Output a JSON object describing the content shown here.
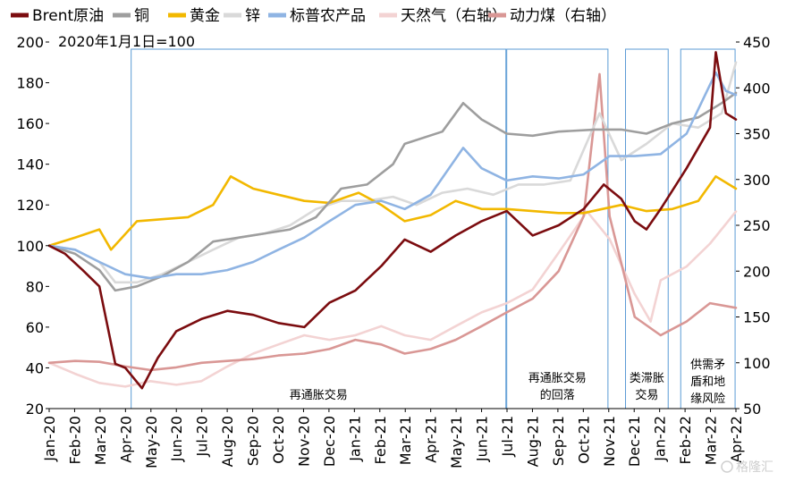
{
  "chart_data": {
    "type": "line",
    "note": "2020年1月1日=100",
    "ylim_left": [
      20,
      200
    ],
    "yticks_left": [
      20,
      40,
      60,
      80,
      100,
      120,
      140,
      160,
      180,
      200
    ],
    "ylim_right": [
      50,
      450
    ],
    "yticks_right": [
      50,
      100,
      150,
      200,
      250,
      300,
      350,
      400,
      450
    ],
    "xlim": [
      "2020-01-01",
      "2022-04-01"
    ],
    "x_ticks": [
      "Jan-20",
      "Feb-20",
      "Mar-20",
      "Apr-20",
      "May-20",
      "Jun-20",
      "Jul-20",
      "Aug-20",
      "Sep-20",
      "Oct-20",
      "Nov-20",
      "Dec-20",
      "Jan-21",
      "Feb-21",
      "Mar-21",
      "Apr-21",
      "May-21",
      "Jun-21",
      "Jul-21",
      "Aug-21",
      "Sep-21",
      "Oct-21",
      "Nov-21",
      "Dec-21",
      "Jan-22",
      "Feb-22",
      "Mar-22",
      "Apr-22"
    ],
    "legend_position": "top",
    "series": [
      {
        "name": "Brent原油",
        "color": "#7b0c0f",
        "axis": "left",
        "x": [
          "2020-01-01",
          "2020-01-20",
          "2020-02-10",
          "2020-03-01",
          "2020-03-20",
          "2020-04-01",
          "2020-04-21",
          "2020-05-10",
          "2020-06-01",
          "2020-07-01",
          "2020-08-01",
          "2020-09-01",
          "2020-10-01",
          "2020-11-01",
          "2020-12-01",
          "2021-01-01",
          "2021-02-01",
          "2021-03-01",
          "2021-04-01",
          "2021-05-01",
          "2021-06-01",
          "2021-07-01",
          "2021-08-01",
          "2021-09-01",
          "2021-10-01",
          "2021-10-25",
          "2021-11-15",
          "2021-12-01",
          "2021-12-15",
          "2022-01-01",
          "2022-02-01",
          "2022-03-01",
          "2022-03-08",
          "2022-03-20",
          "2022-04-01"
        ],
        "y": [
          100,
          96,
          88,
          80,
          42,
          40,
          30,
          45,
          58,
          64,
          68,
          66,
          62,
          60,
          72,
          78,
          90,
          103,
          97,
          105,
          112,
          117,
          105,
          110,
          118,
          130,
          123,
          112,
          108,
          118,
          138,
          158,
          195,
          165,
          162
        ]
      },
      {
        "name": "铜",
        "color": "#9e9e9e",
        "axis": "left",
        "x": [
          "2020-01-01",
          "2020-02-01",
          "2020-03-01",
          "2020-03-20",
          "2020-04-15",
          "2020-05-15",
          "2020-06-15",
          "2020-07-15",
          "2020-08-15",
          "2020-09-15",
          "2020-10-15",
          "2020-11-15",
          "2020-12-15",
          "2021-01-15",
          "2021-02-15",
          "2021-03-01",
          "2021-04-15",
          "2021-05-10",
          "2021-06-01",
          "2021-07-01",
          "2021-08-01",
          "2021-09-01",
          "2021-10-15",
          "2021-11-15",
          "2021-12-15",
          "2022-01-15",
          "2022-02-15",
          "2022-03-15",
          "2022-04-01"
        ],
        "y": [
          100,
          96,
          88,
          78,
          80,
          85,
          92,
          102,
          104,
          106,
          108,
          114,
          128,
          130,
          140,
          150,
          156,
          170,
          162,
          155,
          154,
          156,
          157,
          157,
          155,
          160,
          163,
          170,
          175
        ]
      },
      {
        "name": "黄金",
        "color": "#f2b800",
        "axis": "left",
        "x": [
          "2020-01-01",
          "2020-02-01",
          "2020-03-01",
          "2020-03-15",
          "2020-04-15",
          "2020-05-15",
          "2020-06-15",
          "2020-07-15",
          "2020-08-05",
          "2020-09-01",
          "2020-10-01",
          "2020-11-01",
          "2020-12-01",
          "2021-01-05",
          "2021-02-01",
          "2021-03-01",
          "2021-04-01",
          "2021-05-01",
          "2021-06-01",
          "2021-07-01",
          "2021-08-01",
          "2021-09-01",
          "2021-10-01",
          "2021-11-15",
          "2021-12-15",
          "2022-01-15",
          "2022-02-15",
          "2022-03-08",
          "2022-04-01"
        ],
        "y": [
          100,
          104,
          108,
          98,
          112,
          113,
          114,
          120,
          134,
          128,
          125,
          122,
          121,
          126,
          120,
          112,
          115,
          122,
          118,
          118,
          117,
          116,
          116,
          120,
          117,
          118,
          122,
          134,
          128
        ]
      },
      {
        "name": "锌",
        "color": "#d9d9d9",
        "axis": "left",
        "x": [
          "2020-01-01",
          "2020-02-01",
          "2020-03-01",
          "2020-03-20",
          "2020-04-15",
          "2020-05-15",
          "2020-06-15",
          "2020-07-15",
          "2020-08-15",
          "2020-09-15",
          "2020-10-15",
          "2020-11-15",
          "2020-12-15",
          "2021-01-15",
          "2021-02-15",
          "2021-03-15",
          "2021-04-15",
          "2021-05-15",
          "2021-06-15",
          "2021-07-15",
          "2021-08-15",
          "2021-09-15",
          "2021-10-20",
          "2021-11-15",
          "2021-12-15",
          "2022-01-15",
          "2022-02-15",
          "2022-03-15",
          "2022-04-01"
        ],
        "y": [
          100,
          98,
          92,
          82,
          82,
          86,
          92,
          98,
          104,
          106,
          110,
          118,
          122,
          122,
          124,
          120,
          126,
          128,
          125,
          130,
          130,
          132,
          165,
          142,
          150,
          160,
          158,
          165,
          190
        ]
      },
      {
        "name": "标普农产品",
        "color": "#8fb4e3",
        "axis": "left",
        "x": [
          "2020-01-01",
          "2020-02-01",
          "2020-03-01",
          "2020-04-01",
          "2020-05-01",
          "2020-06-01",
          "2020-07-01",
          "2020-08-01",
          "2020-09-01",
          "2020-10-01",
          "2020-11-01",
          "2020-12-01",
          "2021-01-01",
          "2021-02-01",
          "2021-03-01",
          "2021-04-01",
          "2021-05-10",
          "2021-06-01",
          "2021-07-01",
          "2021-08-01",
          "2021-09-01",
          "2021-10-01",
          "2021-11-01",
          "2021-12-01",
          "2022-01-01",
          "2022-02-01",
          "2022-03-08",
          "2022-03-20",
          "2022-04-01"
        ],
        "y": [
          100,
          98,
          92,
          86,
          84,
          86,
          86,
          88,
          92,
          98,
          104,
          112,
          120,
          122,
          118,
          125,
          148,
          138,
          132,
          134,
          133,
          135,
          144,
          144,
          145,
          155,
          185,
          176,
          174
        ]
      },
      {
        "name": "天然气（右轴）",
        "color": "#f3d3d3",
        "axis": "right",
        "x": [
          "2020-01-01",
          "2020-02-01",
          "2020-03-01",
          "2020-04-01",
          "2020-05-01",
          "2020-06-01",
          "2020-07-01",
          "2020-08-01",
          "2020-09-01",
          "2020-10-01",
          "2020-11-01",
          "2020-12-01",
          "2021-01-01",
          "2021-02-01",
          "2021-03-01",
          "2021-04-01",
          "2021-05-01",
          "2021-06-01",
          "2021-07-01",
          "2021-08-01",
          "2021-09-01",
          "2021-10-05",
          "2021-11-01",
          "2021-12-01",
          "2021-12-20",
          "2022-01-01",
          "2022-02-01",
          "2022-03-01",
          "2022-04-01"
        ],
        "y": [
          100,
          88,
          78,
          74,
          80,
          76,
          80,
          96,
          110,
          120,
          130,
          125,
          130,
          140,
          130,
          125,
          140,
          155,
          165,
          180,
          220,
          265,
          235,
          175,
          145,
          190,
          205,
          230,
          265
        ]
      },
      {
        "name": "动力煤（右轴）",
        "color": "#d99795",
        "axis": "right",
        "x": [
          "2020-01-01",
          "2020-02-01",
          "2020-03-01",
          "2020-04-01",
          "2020-05-01",
          "2020-06-01",
          "2020-07-01",
          "2020-08-01",
          "2020-09-01",
          "2020-10-01",
          "2020-11-01",
          "2020-12-01",
          "2021-01-01",
          "2021-02-01",
          "2021-03-01",
          "2021-04-01",
          "2021-05-01",
          "2021-06-01",
          "2021-07-01",
          "2021-08-01",
          "2021-09-01",
          "2021-10-01",
          "2021-10-20",
          "2021-11-01",
          "2021-12-01",
          "2022-01-01",
          "2022-02-01",
          "2022-03-01",
          "2022-04-01"
        ],
        "y": [
          100,
          102,
          101,
          96,
          92,
          95,
          100,
          102,
          104,
          108,
          110,
          115,
          125,
          120,
          110,
          115,
          125,
          140,
          155,
          170,
          200,
          260,
          415,
          260,
          150,
          130,
          145,
          165,
          160
        ]
      }
    ],
    "shaded_periods": [
      {
        "label": "再通胀交易",
        "start": "2020-04-08",
        "end": "2021-06-30"
      },
      {
        "label": "再通胀交易的回落",
        "label_lines": [
          "再通胀交易",
          "的回落"
        ],
        "start": "2021-07-01",
        "end": "2021-10-30"
      },
      {
        "label": "类滞胀交易",
        "label_lines": [
          "类滞胀",
          "交易"
        ],
        "start": "2021-11-20",
        "end": "2022-01-10"
      },
      {
        "label": "供需矛盾和地缘风险",
        "label_lines": [
          "供需矛",
          "盾和地",
          "缘风险"
        ],
        "start": "2022-01-25",
        "end": "2022-03-31"
      }
    ]
  },
  "watermark": "格隆汇"
}
